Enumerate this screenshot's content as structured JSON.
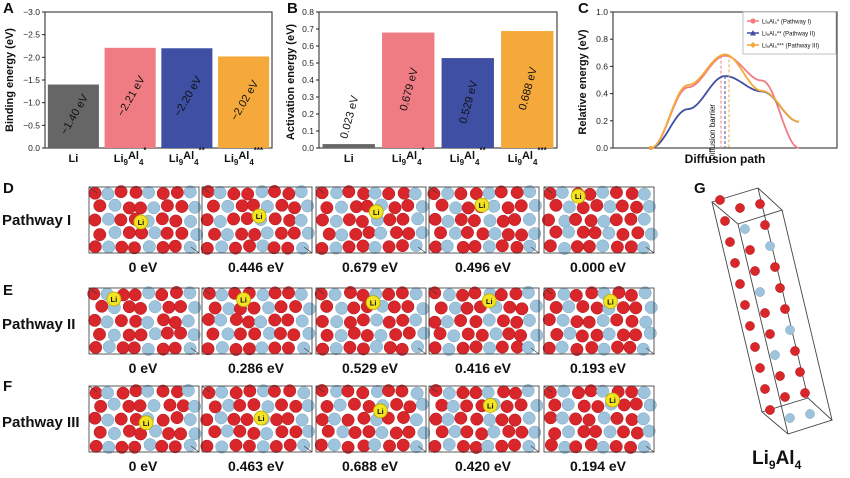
{
  "panel_letters": {
    "a": "A",
    "b": "B",
    "c": "C",
    "d": "D",
    "e": "E",
    "f": "F",
    "g": "G"
  },
  "colors": {
    "li": "#666666",
    "star1": "#f07c83",
    "star2": "#3f4fa3",
    "star3": "#f5a93a",
    "al_atom": "#d9262b",
    "li_host_atom": "#9ec4dd",
    "li_mobile": "#f2e422"
  },
  "chart_data": [
    {
      "id": "A",
      "type": "bar",
      "categories": [
        "Li",
        "Li9Al4*",
        "Li9Al4**",
        "Li9Al4***"
      ],
      "category_labels": [
        {
          "base": "Li",
          "sub": "",
          "sup": ""
        },
        {
          "base": "Li",
          "sub": "9",
          "mid": "Al",
          "sub2": "4",
          "sup": "*"
        },
        {
          "base": "Li",
          "sub": "9",
          "mid": "Al",
          "sub2": "4",
          "sup": "**"
        },
        {
          "base": "Li",
          "sub": "9",
          "mid": "Al",
          "sub2": "4",
          "sup": "***"
        }
      ],
      "values": [
        -1.4,
        -2.21,
        -2.2,
        -2.02
      ],
      "data_labels": [
        "−1.40 eV",
        "−2.21 eV",
        "−2.20 eV",
        "−2.02 eV"
      ],
      "ylabel": "Binding energy (eV)",
      "ylim": [
        0,
        -3.0
      ],
      "yticks": [
        "0.0",
        "−0.5",
        "−1.0",
        "−1.5",
        "−2.0",
        "−2.5",
        "−3.0"
      ]
    },
    {
      "id": "B",
      "type": "bar",
      "categories": [
        "Li",
        "Li9Al4*",
        "Li9Al4**",
        "Li9Al4***"
      ],
      "values": [
        0.023,
        0.679,
        0.529,
        0.688
      ],
      "data_labels": [
        "0.023 eV",
        "0.679 eV",
        "0.529 eV",
        "0.688 eV"
      ],
      "ylabel": "Activation energy (eV)",
      "ylim": [
        0,
        0.8
      ],
      "yticks": [
        "0.0",
        "0.1",
        "0.2",
        "0.3",
        "0.4",
        "0.5",
        "0.6",
        "0.7",
        "0.8"
      ]
    },
    {
      "id": "C",
      "type": "line",
      "xlabel": "Diffusion path",
      "ylabel": "Relative energy (eV)",
      "ylim": [
        0,
        1.0
      ],
      "yticks": [
        "0.0",
        "0.2",
        "0.4",
        "0.6",
        "0.8",
        "1.0"
      ],
      "annotation": "Diffusion barrier",
      "series": [
        {
          "name": "Li9Al4* (Pathway I)",
          "legend": "Li₉Al₄* (Pathway I)",
          "x": [
            0,
            0.25,
            0.5,
            0.75,
            1.0
          ],
          "values": [
            0,
            0.446,
            0.679,
            0.496,
            0.0
          ]
        },
        {
          "name": "Li9Al4** (Pathway II)",
          "legend": "Li₉Al₄** (Pathway II)",
          "x": [
            0,
            0.25,
            0.5,
            0.75,
            1.0
          ],
          "values": [
            0,
            0.286,
            0.529,
            0.416,
            0.193
          ]
        },
        {
          "name": "Li9Al4*** (Pathway III)",
          "legend": "Li₉Al₄*** (Pathway III)",
          "x": [
            0,
            0.25,
            0.5,
            0.75,
            1.0
          ],
          "values": [
            0,
            0.463,
            0.688,
            0.42,
            0.194
          ]
        }
      ]
    }
  ],
  "pathways": [
    {
      "label": "Pathway I",
      "energies": [
        "0 eV",
        "0.446 eV",
        "0.679 eV",
        "0.496 eV",
        "0.000 eV"
      ]
    },
    {
      "label": "Pathway II",
      "energies": [
        "0 eV",
        "0.286 eV",
        "0.529 eV",
        "0.416 eV",
        "0.193 eV"
      ]
    },
    {
      "label": "Pathway III",
      "energies": [
        "0 eV",
        "0.463 eV",
        "0.688 eV",
        "0.420 eV",
        "0.194 eV"
      ]
    }
  ],
  "li_tag": "Li",
  "structure_title": {
    "base": "Li",
    "sub1": "9",
    "mid": "Al",
    "sub2": "4"
  }
}
